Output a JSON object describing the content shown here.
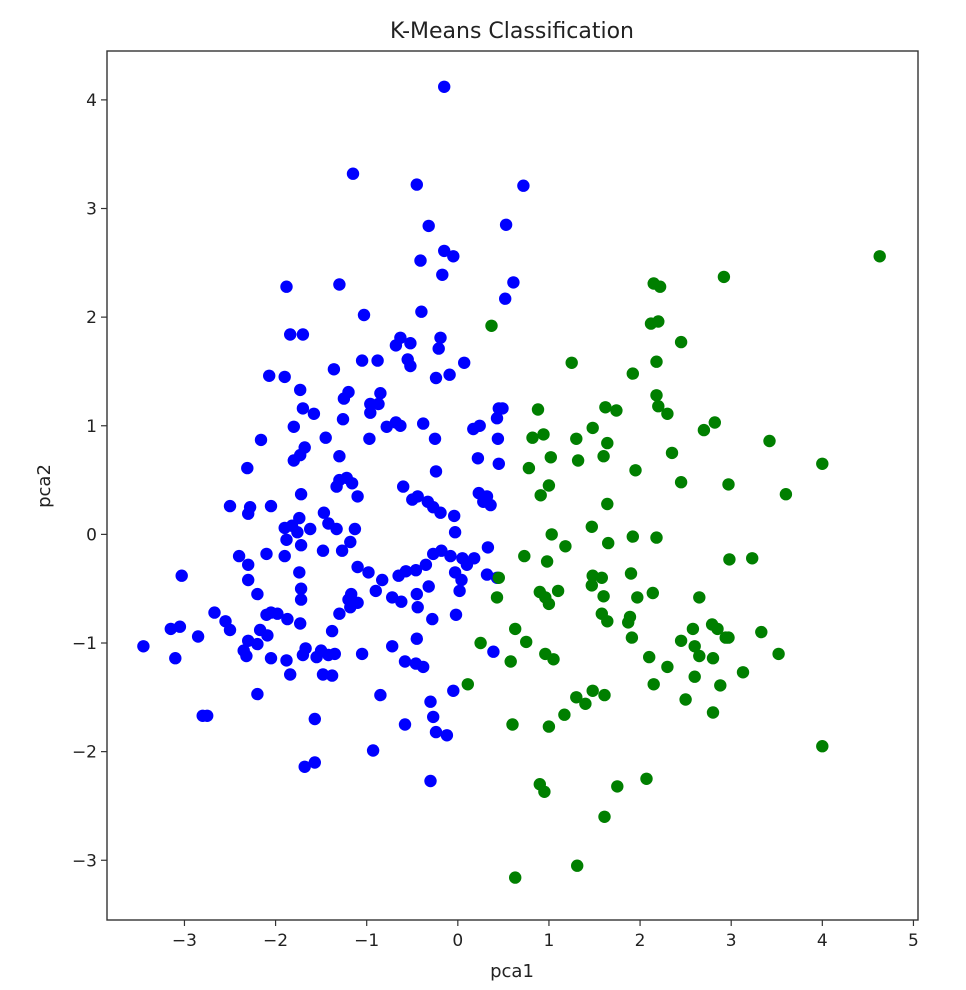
{
  "chart_data": {
    "type": "scatter",
    "title": "K-Means Classification",
    "xlabel": "pca1",
    "ylabel": "pca2",
    "xlim": [
      -3.85,
      5.05
    ],
    "ylim": [
      -3.55,
      4.45
    ],
    "xticks": [
      -3,
      -2,
      -1,
      0,
      1,
      2,
      3,
      4,
      5
    ],
    "yticks": [
      -3,
      -2,
      -1,
      0,
      1,
      2,
      3,
      4
    ],
    "xtick_labels": [
      "−3",
      "−2",
      "−1",
      "0",
      "1",
      "2",
      "3",
      "4",
      "5"
    ],
    "ytick_labels": [
      "−3",
      "−2",
      "−1",
      "0",
      "1",
      "2",
      "3",
      "4"
    ],
    "grid": false,
    "legend": "none",
    "series": [
      {
        "color": "#0000ff",
        "points": [
          [
            -0.15,
            4.12
          ],
          [
            -1.15,
            3.32
          ],
          [
            -0.45,
            3.22
          ],
          [
            0.72,
            3.21
          ],
          [
            -0.32,
            2.84
          ],
          [
            0.53,
            2.85
          ],
          [
            -0.15,
            2.61
          ],
          [
            -0.05,
            2.56
          ],
          [
            -0.41,
            2.52
          ],
          [
            -0.17,
            2.39
          ],
          [
            0.61,
            2.32
          ],
          [
            -1.88,
            2.28
          ],
          [
            -1.3,
            2.3
          ],
          [
            0.52,
            2.17
          ],
          [
            -0.4,
            2.05
          ],
          [
            -1.03,
            2.02
          ],
          [
            -1.84,
            1.84
          ],
          [
            -1.7,
            1.84
          ],
          [
            -0.19,
            1.81
          ],
          [
            -0.63,
            1.81
          ],
          [
            -0.52,
            1.76
          ],
          [
            -0.68,
            1.74
          ],
          [
            -0.21,
            1.71
          ],
          [
            -1.05,
            1.6
          ],
          [
            -0.88,
            1.6
          ],
          [
            -0.55,
            1.61
          ],
          [
            -0.52,
            1.55
          ],
          [
            -0.09,
            1.47
          ],
          [
            -0.24,
            1.44
          ],
          [
            0.07,
            1.58
          ],
          [
            -2.07,
            1.46
          ],
          [
            -1.9,
            1.45
          ],
          [
            -1.36,
            1.52
          ],
          [
            -1.2,
            1.31
          ],
          [
            -1.25,
            1.25
          ],
          [
            -1.73,
            1.33
          ],
          [
            -0.85,
            1.3
          ],
          [
            -0.87,
            1.2
          ],
          [
            -0.96,
            1.2
          ],
          [
            -0.96,
            1.12
          ],
          [
            -1.26,
            1.06
          ],
          [
            -1.58,
            1.11
          ],
          [
            -1.7,
            1.16
          ],
          [
            -0.63,
            1.0
          ],
          [
            -0.68,
            1.03
          ],
          [
            -1.8,
            0.99
          ],
          [
            -0.38,
            1.02
          ],
          [
            -0.78,
            0.99
          ],
          [
            -0.25,
            0.88
          ],
          [
            -0.97,
            0.88
          ],
          [
            -2.16,
            0.87
          ],
          [
            -1.45,
            0.89
          ],
          [
            -1.68,
            0.8
          ],
          [
            -1.73,
            0.73
          ],
          [
            -1.8,
            0.68
          ],
          [
            0.24,
            1.0
          ],
          [
            0.17,
            0.97
          ],
          [
            0.43,
            1.07
          ],
          [
            0.45,
            1.16
          ],
          [
            0.49,
            1.16
          ],
          [
            0.44,
            0.88
          ],
          [
            0.22,
            0.7
          ],
          [
            0.45,
            0.65
          ],
          [
            -2.31,
            0.61
          ],
          [
            -1.3,
            0.72
          ],
          [
            -1.3,
            0.5
          ],
          [
            -1.22,
            0.52
          ],
          [
            -1.16,
            0.47
          ],
          [
            -1.33,
            0.44
          ],
          [
            -0.6,
            0.44
          ],
          [
            -0.24,
            0.58
          ],
          [
            -0.44,
            0.35
          ],
          [
            -0.33,
            0.3
          ],
          [
            -0.27,
            0.25
          ],
          [
            -0.19,
            0.2
          ],
          [
            -0.5,
            0.32
          ],
          [
            -1.72,
            0.37
          ],
          [
            -1.1,
            0.35
          ],
          [
            -2.5,
            0.26
          ],
          [
            -2.28,
            0.25
          ],
          [
            -2.05,
            0.26
          ],
          [
            -2.3,
            0.19
          ],
          [
            -1.47,
            0.2
          ],
          [
            -1.74,
            0.15
          ],
          [
            0.23,
            0.38
          ],
          [
            0.28,
            0.3
          ],
          [
            0.36,
            0.27
          ],
          [
            0.32,
            0.35
          ],
          [
            -1.82,
            0.08
          ],
          [
            -1.9,
            0.06
          ],
          [
            -1.62,
            0.05
          ],
          [
            -1.33,
            0.05
          ],
          [
            -1.13,
            0.05
          ],
          [
            -1.42,
            0.1
          ],
          [
            -1.76,
            0.02
          ],
          [
            -0.04,
            0.17
          ],
          [
            -0.03,
            0.02
          ],
          [
            -1.88,
            -0.05
          ],
          [
            -2.1,
            -0.18
          ],
          [
            -1.72,
            -0.1
          ],
          [
            -1.48,
            -0.15
          ],
          [
            -1.27,
            -0.15
          ],
          [
            -1.18,
            -0.07
          ],
          [
            -2.4,
            -0.2
          ],
          [
            -2.3,
            -0.28
          ],
          [
            -2.3,
            -0.42
          ],
          [
            -2.2,
            -0.55
          ],
          [
            -1.9,
            -0.2
          ],
          [
            -0.18,
            -0.15
          ],
          [
            -0.08,
            -0.2
          ],
          [
            0.05,
            -0.22
          ],
          [
            0.1,
            -0.28
          ],
          [
            0.18,
            -0.22
          ],
          [
            0.33,
            -0.12
          ],
          [
            -0.03,
            -0.35
          ],
          [
            -1.74,
            -0.35
          ],
          [
            -1.72,
            -0.5
          ],
          [
            -1.72,
            -0.6
          ],
          [
            -1.1,
            -0.3
          ],
          [
            -0.98,
            -0.35
          ],
          [
            -0.83,
            -0.42
          ],
          [
            -0.65,
            -0.38
          ],
          [
            -0.57,
            -0.34
          ],
          [
            -0.46,
            -0.33
          ],
          [
            -0.35,
            -0.28
          ],
          [
            -0.27,
            -0.18
          ],
          [
            -0.9,
            -0.52
          ],
          [
            -0.72,
            -0.58
          ],
          [
            -0.62,
            -0.62
          ],
          [
            -0.45,
            -0.55
          ],
          [
            -0.32,
            -0.48
          ],
          [
            -0.44,
            -0.67
          ],
          [
            0.04,
            -0.42
          ],
          [
            0.02,
            -0.52
          ],
          [
            0.32,
            -0.37
          ],
          [
            0.43,
            -0.4
          ],
          [
            -1.17,
            -0.55
          ],
          [
            -1.2,
            -0.6
          ],
          [
            -1.18,
            -0.67
          ],
          [
            -1.3,
            -0.73
          ],
          [
            -1.1,
            -0.63
          ],
          [
            -1.38,
            -0.89
          ],
          [
            -0.28,
            -0.78
          ],
          [
            -0.02,
            -0.74
          ],
          [
            -3.03,
            -0.38
          ],
          [
            -2.67,
            -0.72
          ],
          [
            -2.55,
            -0.8
          ],
          [
            -2.5,
            -0.88
          ],
          [
            -2.1,
            -0.74
          ],
          [
            -2.05,
            -0.72
          ],
          [
            -1.98,
            -0.73
          ],
          [
            -1.87,
            -0.78
          ],
          [
            -1.73,
            -0.82
          ],
          [
            -2.17,
            -0.88
          ],
          [
            -2.3,
            -0.98
          ],
          [
            -2.09,
            -0.93
          ],
          [
            -2.2,
            -1.01
          ],
          [
            -2.35,
            -1.07
          ],
          [
            -2.32,
            -1.12
          ],
          [
            -1.88,
            -1.16
          ],
          [
            -2.05,
            -1.14
          ],
          [
            -3.15,
            -0.87
          ],
          [
            -3.05,
            -0.85
          ],
          [
            -2.85,
            -0.94
          ],
          [
            -3.1,
            -1.14
          ],
          [
            -3.45,
            -1.03
          ],
          [
            -1.67,
            -1.05
          ],
          [
            -1.7,
            -1.11
          ],
          [
            -1.5,
            -1.07
          ],
          [
            -1.42,
            -1.11
          ],
          [
            -1.55,
            -1.13
          ],
          [
            -1.35,
            -1.1
          ],
          [
            -1.05,
            -1.1
          ],
          [
            -1.84,
            -1.29
          ],
          [
            -1.48,
            -1.29
          ],
          [
            -1.38,
            -1.3
          ],
          [
            -0.58,
            -1.17
          ],
          [
            -0.46,
            -1.19
          ],
          [
            -0.38,
            -1.22
          ],
          [
            -0.72,
            -1.03
          ],
          [
            -0.45,
            -0.96
          ],
          [
            -2.2,
            -1.47
          ],
          [
            -2.75,
            -1.67
          ],
          [
            -2.8,
            -1.67
          ],
          [
            -0.85,
            -1.48
          ],
          [
            -0.3,
            -1.54
          ],
          [
            -0.05,
            -1.44
          ],
          [
            -1.57,
            -1.7
          ],
          [
            -0.27,
            -1.68
          ],
          [
            -0.58,
            -1.75
          ],
          [
            -0.24,
            -1.82
          ],
          [
            -0.12,
            -1.85
          ],
          [
            -1.68,
            -2.14
          ],
          [
            -1.57,
            -2.1
          ],
          [
            -0.93,
            -1.99
          ],
          [
            -0.3,
            -2.27
          ],
          [
            0.39,
            -1.08
          ]
        ]
      },
      {
        "color": "#007f00",
        "points": [
          [
            4.63,
            2.56
          ],
          [
            2.92,
            2.37
          ],
          [
            2.15,
            2.31
          ],
          [
            2.22,
            2.28
          ],
          [
            2.45,
            1.77
          ],
          [
            0.37,
            1.92
          ],
          [
            2.12,
            1.94
          ],
          [
            2.2,
            1.96
          ],
          [
            2.18,
            1.59
          ],
          [
            1.25,
            1.58
          ],
          [
            1.92,
            1.48
          ],
          [
            2.18,
            1.28
          ],
          [
            2.2,
            1.18
          ],
          [
            2.3,
            1.11
          ],
          [
            1.62,
            1.17
          ],
          [
            1.74,
            1.14
          ],
          [
            0.88,
            1.15
          ],
          [
            2.82,
            1.03
          ],
          [
            2.7,
            0.96
          ],
          [
            1.48,
            0.98
          ],
          [
            1.3,
            0.88
          ],
          [
            0.82,
            0.89
          ],
          [
            0.94,
            0.92
          ],
          [
            1.64,
            0.84
          ],
          [
            3.42,
            0.86
          ],
          [
            2.35,
            0.75
          ],
          [
            1.6,
            0.72
          ],
          [
            1.02,
            0.71
          ],
          [
            1.32,
            0.68
          ],
          [
            0.78,
            0.61
          ],
          [
            1.95,
            0.59
          ],
          [
            4.0,
            0.65
          ],
          [
            2.45,
            0.48
          ],
          [
            1.0,
            0.45
          ],
          [
            0.91,
            0.36
          ],
          [
            2.97,
            0.46
          ],
          [
            3.6,
            0.37
          ],
          [
            1.64,
            0.28
          ],
          [
            1.47,
            0.07
          ],
          [
            1.03,
            0.0
          ],
          [
            1.65,
            -0.08
          ],
          [
            1.92,
            -0.02
          ],
          [
            2.18,
            -0.03
          ],
          [
            1.18,
            -0.11
          ],
          [
            0.73,
            -0.2
          ],
          [
            0.98,
            -0.25
          ],
          [
            2.98,
            -0.23
          ],
          [
            3.23,
            -0.22
          ],
          [
            0.45,
            -0.4
          ],
          [
            0.43,
            -0.58
          ],
          [
            1.48,
            -0.38
          ],
          [
            1.58,
            -0.4
          ],
          [
            1.9,
            -0.36
          ],
          [
            1.47,
            -0.47
          ],
          [
            1.1,
            -0.52
          ],
          [
            0.9,
            -0.53
          ],
          [
            0.96,
            -0.58
          ],
          [
            1.0,
            -0.64
          ],
          [
            1.6,
            -0.57
          ],
          [
            1.97,
            -0.58
          ],
          [
            2.14,
            -0.54
          ],
          [
            2.65,
            -0.58
          ],
          [
            1.58,
            -0.73
          ],
          [
            1.64,
            -0.8
          ],
          [
            1.89,
            -0.76
          ],
          [
            1.87,
            -0.81
          ],
          [
            0.63,
            -0.87
          ],
          [
            0.75,
            -0.99
          ],
          [
            1.91,
            -0.95
          ],
          [
            2.58,
            -0.87
          ],
          [
            2.79,
            -0.83
          ],
          [
            2.85,
            -0.87
          ],
          [
            2.94,
            -0.95
          ],
          [
            2.97,
            -0.95
          ],
          [
            3.33,
            -0.9
          ],
          [
            0.25,
            -1.0
          ],
          [
            0.96,
            -1.1
          ],
          [
            1.05,
            -1.15
          ],
          [
            0.58,
            -1.17
          ],
          [
            2.1,
            -1.13
          ],
          [
            2.45,
            -0.98
          ],
          [
            2.6,
            -1.03
          ],
          [
            2.65,
            -1.12
          ],
          [
            2.8,
            -1.14
          ],
          [
            2.3,
            -1.22
          ],
          [
            3.52,
            -1.1
          ],
          [
            0.11,
            -1.38
          ],
          [
            2.15,
            -1.38
          ],
          [
            2.6,
            -1.31
          ],
          [
            2.88,
            -1.39
          ],
          [
            3.13,
            -1.27
          ],
          [
            1.3,
            -1.5
          ],
          [
            1.48,
            -1.44
          ],
          [
            1.4,
            -1.56
          ],
          [
            1.61,
            -1.48
          ],
          [
            1.17,
            -1.66
          ],
          [
            2.5,
            -1.52
          ],
          [
            0.6,
            -1.75
          ],
          [
            1.0,
            -1.77
          ],
          [
            2.8,
            -1.64
          ],
          [
            4.0,
            -1.95
          ],
          [
            0.9,
            -2.3
          ],
          [
            0.95,
            -2.37
          ],
          [
            1.75,
            -2.32
          ],
          [
            2.07,
            -2.25
          ],
          [
            1.61,
            -2.6
          ],
          [
            0.63,
            -3.16
          ],
          [
            1.31,
            -3.05
          ]
        ]
      }
    ]
  }
}
